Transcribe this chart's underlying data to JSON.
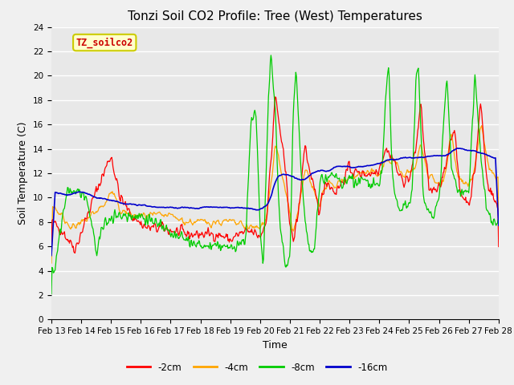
{
  "title": "Tonzi Soil CO2 Profile: Tree (West) Temperatures",
  "xlabel": "Time",
  "ylabel": "Soil Temperature (C)",
  "ylim": [
    0,
    24
  ],
  "yticks": [
    0,
    2,
    4,
    6,
    8,
    10,
    12,
    14,
    16,
    18,
    20,
    22,
    24
  ],
  "xtick_labels": [
    "Feb 13",
    "Feb 14",
    "Feb 15",
    "Feb 16",
    "Feb 17",
    "Feb 18",
    "Feb 19",
    "Feb 20",
    "Feb 21",
    "Feb 22",
    "Feb 23",
    "Feb 24",
    "Feb 25",
    "Feb 26",
    "Feb 27",
    "Feb 28"
  ],
  "series_colors": [
    "#ff0000",
    "#ffa500",
    "#00cc00",
    "#0000cc"
  ],
  "series_labels": [
    "-2cm",
    "-4cm",
    "-8cm",
    "-16cm"
  ],
  "legend_label": "TZ_soilco2",
  "plot_bg_color": "#e8e8e8",
  "fig_bg_color": "#f0f0f0",
  "grid_color": "#ffffff",
  "title_fontsize": 11,
  "axis_fontsize": 9,
  "tick_fontsize": 7.5,
  "legend_text_color": "#cc0000",
  "legend_box_color": "#ffffcc",
  "legend_box_edge": "#cccc00"
}
